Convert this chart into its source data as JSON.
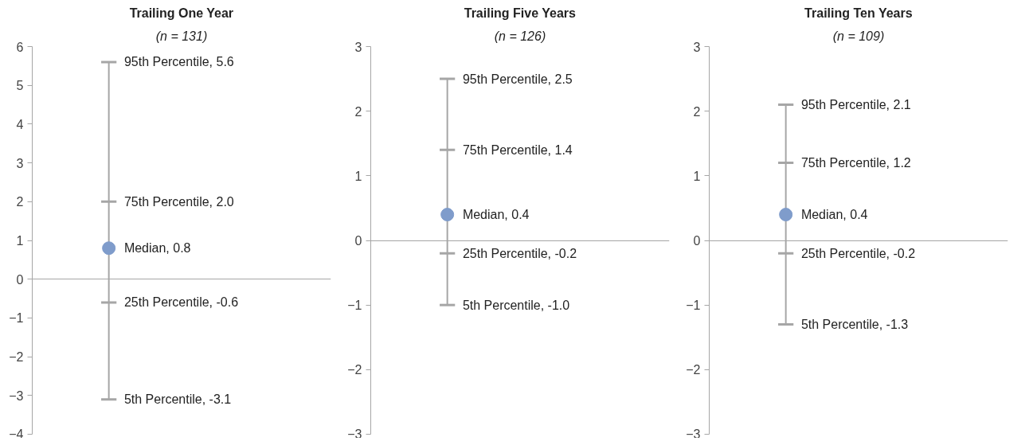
{
  "chart_data": [
    {
      "type": "box",
      "title": "Trailing One Year",
      "subtitle": "(n = 131)",
      "categories": [
        null
      ],
      "boxes": [
        {
          "low": -3.1,
          "q1": -0.6,
          "median": 0.8,
          "q3": 2.0,
          "high": 5.6
        }
      ],
      "ylim": [
        -4,
        6
      ],
      "yticks": [
        -4,
        -3,
        -2,
        -1,
        0,
        1,
        2,
        3,
        4,
        5,
        6
      ],
      "annotations": [
        "95th Percentile, 5.6",
        "75th Percentile, 2.0",
        "Median, 0.8",
        "25th Percentile, -0.6",
        "5th Percentile, -3.1"
      ]
    },
    {
      "type": "box",
      "title": "Trailing Five Years",
      "subtitle": "(n = 126)",
      "categories": [
        null
      ],
      "boxes": [
        {
          "low": -1.0,
          "q1": -0.2,
          "median": 0.4,
          "q3": 1.4,
          "high": 2.5
        }
      ],
      "ylim": [
        -3,
        3
      ],
      "yticks": [
        -3,
        -2,
        -1,
        0,
        1,
        2,
        3
      ],
      "annotations": [
        "95th Percentile, 2.5",
        "75th Percentile, 1.4",
        "Median, 0.4",
        "25th Percentile, -0.2",
        "5th Percentile, -1.0"
      ]
    },
    {
      "type": "box",
      "title": "Trailing Ten Years",
      "subtitle": "(n = 109)",
      "categories": [
        null
      ],
      "boxes": [
        {
          "low": -1.3,
          "q1": -0.2,
          "median": 0.4,
          "q3": 1.2,
          "high": 2.1
        }
      ],
      "ylim": [
        -3,
        3
      ],
      "yticks": [
        -3,
        -2,
        -1,
        0,
        1,
        2,
        3
      ],
      "annotations": [
        "95th Percentile, 2.1",
        "75th Percentile, 1.2",
        "Median, 0.4",
        "25th Percentile, -0.2",
        "5th Percentile, -1.3"
      ]
    }
  ]
}
